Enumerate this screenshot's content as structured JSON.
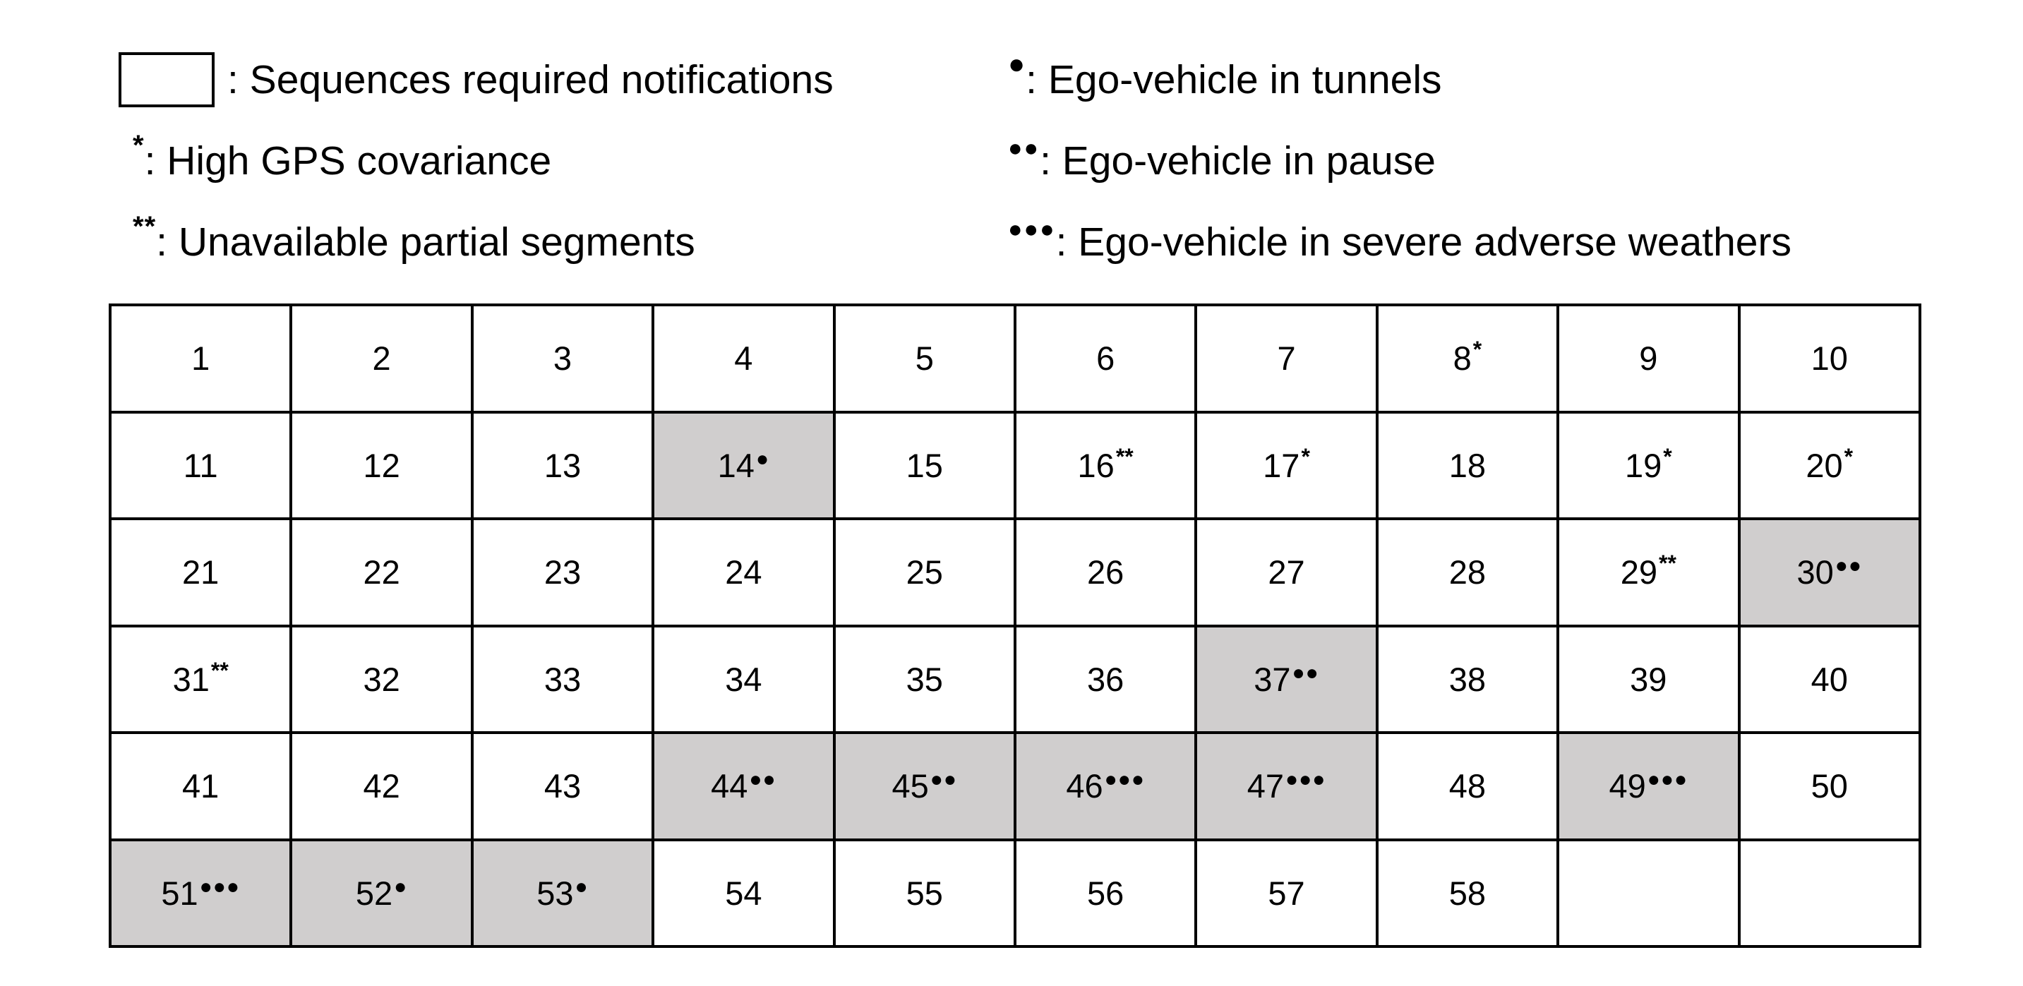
{
  "colors": {
    "highlight": "#d0cece",
    "border": "#000000",
    "background": "#ffffff"
  },
  "legend": [
    {
      "id": "notify",
      "symbol": "",
      "text": ": Sequences required notifications"
    },
    {
      "id": "tunnel",
      "symbol": "●",
      "text": ": Ego-vehicle in tunnels"
    },
    {
      "id": "gps",
      "symbol": "*",
      "text": ": High GPS covariance"
    },
    {
      "id": "pause",
      "symbol": "●●",
      "text": ": Ego-vehicle in pause"
    },
    {
      "id": "unavailable",
      "symbol": "**",
      "text": ": Unavailable partial segments"
    },
    {
      "id": "weather",
      "symbol": "●●●",
      "text": ": Ego-vehicle in severe adverse weathers"
    }
  ],
  "grid": {
    "columns": 10,
    "cells": [
      {
        "label": "1",
        "mark": "",
        "highlight": false
      },
      {
        "label": "2",
        "mark": "",
        "highlight": false
      },
      {
        "label": "3",
        "mark": "",
        "highlight": false
      },
      {
        "label": "4",
        "mark": "",
        "highlight": false
      },
      {
        "label": "5",
        "mark": "",
        "highlight": false
      },
      {
        "label": "6",
        "mark": "",
        "highlight": false
      },
      {
        "label": "7",
        "mark": "",
        "highlight": false
      },
      {
        "label": "8",
        "mark": "*",
        "highlight": false
      },
      {
        "label": "9",
        "mark": "",
        "highlight": false
      },
      {
        "label": "10",
        "mark": "",
        "highlight": false
      },
      {
        "label": "11",
        "mark": "",
        "highlight": false
      },
      {
        "label": "12",
        "mark": "",
        "highlight": false
      },
      {
        "label": "13",
        "mark": "",
        "highlight": false
      },
      {
        "label": "14",
        "mark": "●",
        "highlight": true
      },
      {
        "label": "15",
        "mark": "",
        "highlight": false
      },
      {
        "label": "16",
        "mark": "**",
        "highlight": false
      },
      {
        "label": "17",
        "mark": "*",
        "highlight": false
      },
      {
        "label": "18",
        "mark": "",
        "highlight": false
      },
      {
        "label": "19",
        "mark": "*",
        "highlight": false
      },
      {
        "label": "20",
        "mark": "*",
        "highlight": false
      },
      {
        "label": "21",
        "mark": "",
        "highlight": false
      },
      {
        "label": "22",
        "mark": "",
        "highlight": false
      },
      {
        "label": "23",
        "mark": "",
        "highlight": false
      },
      {
        "label": "24",
        "mark": "",
        "highlight": false
      },
      {
        "label": "25",
        "mark": "",
        "highlight": false
      },
      {
        "label": "26",
        "mark": "",
        "highlight": false
      },
      {
        "label": "27",
        "mark": "",
        "highlight": false
      },
      {
        "label": "28",
        "mark": "",
        "highlight": false
      },
      {
        "label": "29",
        "mark": "**",
        "highlight": false
      },
      {
        "label": "30",
        "mark": "●●",
        "highlight": true
      },
      {
        "label": "31",
        "mark": "**",
        "highlight": false
      },
      {
        "label": "32",
        "mark": "",
        "highlight": false
      },
      {
        "label": "33",
        "mark": "",
        "highlight": false
      },
      {
        "label": "34",
        "mark": "",
        "highlight": false
      },
      {
        "label": "35",
        "mark": "",
        "highlight": false
      },
      {
        "label": "36",
        "mark": "",
        "highlight": false
      },
      {
        "label": "37",
        "mark": "●●",
        "highlight": true
      },
      {
        "label": "38",
        "mark": "",
        "highlight": false
      },
      {
        "label": "39",
        "mark": "",
        "highlight": false
      },
      {
        "label": "40",
        "mark": "",
        "highlight": false
      },
      {
        "label": "41",
        "mark": "",
        "highlight": false
      },
      {
        "label": "42",
        "mark": "",
        "highlight": false
      },
      {
        "label": "43",
        "mark": "",
        "highlight": false
      },
      {
        "label": "44",
        "mark": "●●",
        "highlight": true
      },
      {
        "label": "45",
        "mark": "●●",
        "highlight": true
      },
      {
        "label": "46",
        "mark": "●●●",
        "highlight": true
      },
      {
        "label": "47",
        "mark": "●●●",
        "highlight": true
      },
      {
        "label": "48",
        "mark": "",
        "highlight": false
      },
      {
        "label": "49",
        "mark": "●●●",
        "highlight": true
      },
      {
        "label": "50",
        "mark": "",
        "highlight": false
      },
      {
        "label": "51",
        "mark": "●●●",
        "highlight": true
      },
      {
        "label": "52",
        "mark": "●",
        "highlight": true
      },
      {
        "label": "53",
        "mark": "●",
        "highlight": true
      },
      {
        "label": "54",
        "mark": "",
        "highlight": false
      },
      {
        "label": "55",
        "mark": "",
        "highlight": false
      },
      {
        "label": "56",
        "mark": "",
        "highlight": false
      },
      {
        "label": "57",
        "mark": "",
        "highlight": false
      },
      {
        "label": "58",
        "mark": "",
        "highlight": false
      },
      {
        "label": "",
        "mark": "",
        "highlight": false
      },
      {
        "label": "",
        "mark": "",
        "highlight": false
      }
    ]
  }
}
